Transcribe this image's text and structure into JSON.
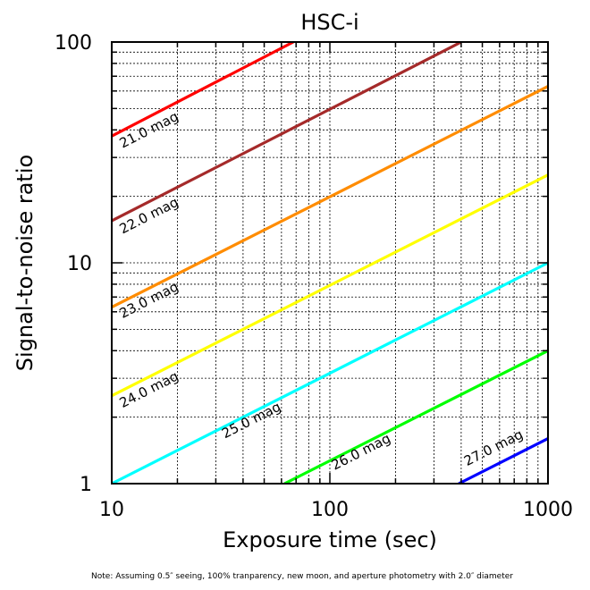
{
  "chart_data": {
    "type": "line",
    "title": "HSC-i",
    "xlabel": "Exposure time (sec)",
    "ylabel": "Signal-to-noise ratio",
    "xscale": "log",
    "yscale": "log",
    "xlim": [
      10,
      1000
    ],
    "ylim": [
      1,
      100
    ],
    "xticks": [
      "10",
      "100",
      "1000"
    ],
    "yticks": [
      "1",
      "10",
      "100"
    ],
    "grid": true,
    "series": [
      {
        "name": "21.0 mag",
        "color": "#ff0000",
        "x": [
          10,
          68
        ],
        "y": [
          37.5,
          100
        ]
      },
      {
        "name": "22.0 mag",
        "color": "#a52a2a",
        "x": [
          10,
          400
        ],
        "y": [
          15.5,
          100
        ]
      },
      {
        "name": "23.0 mag",
        "color": "#ff8c00",
        "x": [
          10,
          1000
        ],
        "y": [
          6.3,
          63
        ]
      },
      {
        "name": "24.0 mag",
        "color": "#ffff00",
        "x": [
          10,
          1000
        ],
        "y": [
          2.5,
          25
        ]
      },
      {
        "name": "25.0 mag",
        "color": "#00ffff",
        "x": [
          10,
          1000
        ],
        "y": [
          1.0,
          10.0
        ]
      },
      {
        "name": "26.0 mag",
        "color": "#00ff00",
        "x": [
          62,
          1000
        ],
        "y": [
          1.0,
          4.0
        ]
      },
      {
        "name": "27.0 mag",
        "color": "#0000ff",
        "x": [
          390,
          1000
        ],
        "y": [
          1.0,
          1.6
        ]
      }
    ],
    "annotations": [
      {
        "text": "21.0 mag",
        "x": 11.2,
        "y": 33
      },
      {
        "text": "22.0 mag",
        "x": 11.2,
        "y": 13.5
      },
      {
        "text": "23.0 mag",
        "x": 11.2,
        "y": 5.6
      },
      {
        "text": "24.0 mag",
        "x": 11.2,
        "y": 2.2
      },
      {
        "text": "25.0 mag",
        "x": 33,
        "y": 1.6
      },
      {
        "text": "26.0 mag",
        "x": 105,
        "y": 1.15
      },
      {
        "text": "27.0 mag",
        "x": 425,
        "y": 1.2
      }
    ]
  },
  "footnote": "Note: Assuming 0.5″ seeing, 100% tranparency, new moon, and aperture photometry with 2.0″ diameter"
}
